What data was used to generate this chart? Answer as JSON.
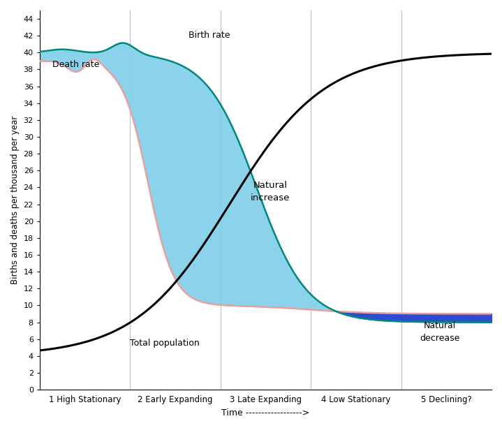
{
  "ylabel": "Births and deaths per thousand per year",
  "xlabel": "Time ------------------>",
  "ylim": [
    0,
    45
  ],
  "xlim": [
    0,
    10
  ],
  "yticks": [
    0,
    2,
    4,
    6,
    8,
    10,
    12,
    14,
    16,
    18,
    20,
    22,
    24,
    26,
    28,
    30,
    32,
    34,
    36,
    38,
    40,
    42,
    44
  ],
  "stage_labels": [
    "1 High Stationary",
    "2 Early Expanding",
    "3 Late Expanding",
    "4 Low Stationary",
    "5 Declining?"
  ],
  "stage_x": [
    1.0,
    3.0,
    5.0,
    7.0,
    9.0
  ],
  "vline_x": [
    2.0,
    4.0,
    6.0,
    8.0
  ],
  "birth_rate_line_color": "#00897b",
  "death_rate_line_color": "#e8a0a0",
  "population_line_color": "#000000",
  "natural_increase_color": "#7ecfe8",
  "natural_decrease_color": "#1a3ecf",
  "ann_birth_rate": [
    3.3,
    41.8
  ],
  "ann_death_rate": [
    0.28,
    38.3
  ],
  "ann_total_pop": [
    2.0,
    5.2
  ],
  "ann_natural_increase": [
    5.1,
    22.5
  ],
  "ann_natural_decrease": [
    8.85,
    5.8
  ]
}
